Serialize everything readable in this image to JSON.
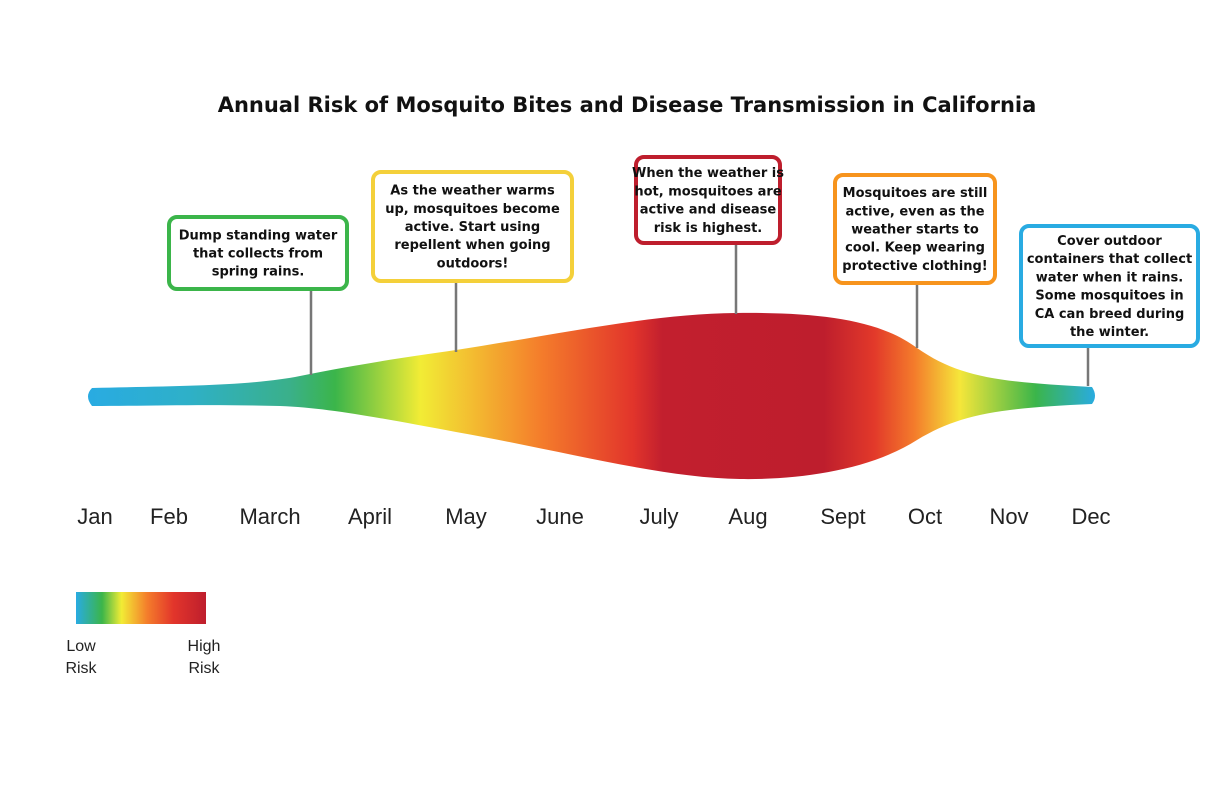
{
  "title": "Annual Risk of Mosquito Bites and Disease Transmission in California",
  "months": [
    "Jan",
    "Feb",
    "March",
    "April",
    "May",
    "June",
    "July",
    "Aug",
    "Sept",
    "Oct",
    "Nov",
    "Dec"
  ],
  "callouts": [
    {
      "lines": [
        "Dump standing water",
        "that collects from",
        "spring rains."
      ]
    },
    {
      "lines": [
        "As the weather warms",
        "up, mosquitoes become",
        "active. Start using",
        "repellent when going",
        "outdoors!"
      ]
    },
    {
      "lines": [
        "When the weather is",
        "hot, mosquitoes are",
        "active and disease",
        "risk is highest."
      ]
    },
    {
      "lines": [
        "Mosquitoes are still",
        "active, even as the",
        "weather starts to",
        "cool. Keep wearing",
        "protective clothing!"
      ]
    },
    {
      "lines": [
        "Cover outdoor",
        "containers that collect",
        "water when it rains.",
        "Some mosquitoes in",
        "CA can breed during",
        "the winter."
      ]
    }
  ],
  "legend": {
    "low": [
      "Low",
      "Risk"
    ],
    "high": [
      "High",
      "Risk"
    ]
  }
}
